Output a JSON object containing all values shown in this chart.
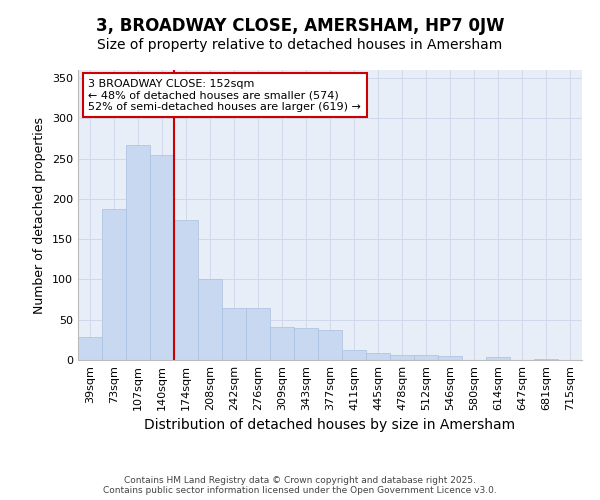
{
  "title1": "3, BROADWAY CLOSE, AMERSHAM, HP7 0JW",
  "title2": "Size of property relative to detached houses in Amersham",
  "xlabel": "Distribution of detached houses by size in Amersham",
  "ylabel": "Number of detached properties",
  "categories": [
    "39sqm",
    "73sqm",
    "107sqm",
    "140sqm",
    "174sqm",
    "208sqm",
    "242sqm",
    "276sqm",
    "309sqm",
    "343sqm",
    "377sqm",
    "411sqm",
    "445sqm",
    "478sqm",
    "512sqm",
    "546sqm",
    "580sqm",
    "614sqm",
    "647sqm",
    "681sqm",
    "715sqm"
  ],
  "values": [
    29,
    187,
    267,
    255,
    174,
    100,
    65,
    65,
    41,
    40,
    37,
    12,
    9,
    6,
    6,
    5,
    0,
    4,
    0,
    1,
    0
  ],
  "bar_color": "#c8d8f0",
  "bar_edge_color": "#a8c0e0",
  "grid_color": "#d0d8ec",
  "background_color": "#e8eef8",
  "fig_bg_color": "#ffffff",
  "annotation_line1": "3 BROADWAY CLOSE: 152sqm",
  "annotation_line2": "← 48% of detached houses are smaller (574)",
  "annotation_line3": "52% of semi-detached houses are larger (619) →",
  "annotation_box_color": "#ffffff",
  "annotation_box_edge": "#cc0000",
  "redline_color": "#cc0000",
  "ylim": [
    0,
    360
  ],
  "yticks": [
    0,
    50,
    100,
    150,
    200,
    250,
    300,
    350
  ],
  "footer1": "Contains HM Land Registry data © Crown copyright and database right 2025.",
  "footer2": "Contains public sector information licensed under the Open Government Licence v3.0.",
  "title1_fontsize": 12,
  "title2_fontsize": 10,
  "ylabel_fontsize": 9,
  "xlabel_fontsize": 10,
  "tick_fontsize": 8,
  "footer_fontsize": 6.5,
  "annot_fontsize": 8
}
